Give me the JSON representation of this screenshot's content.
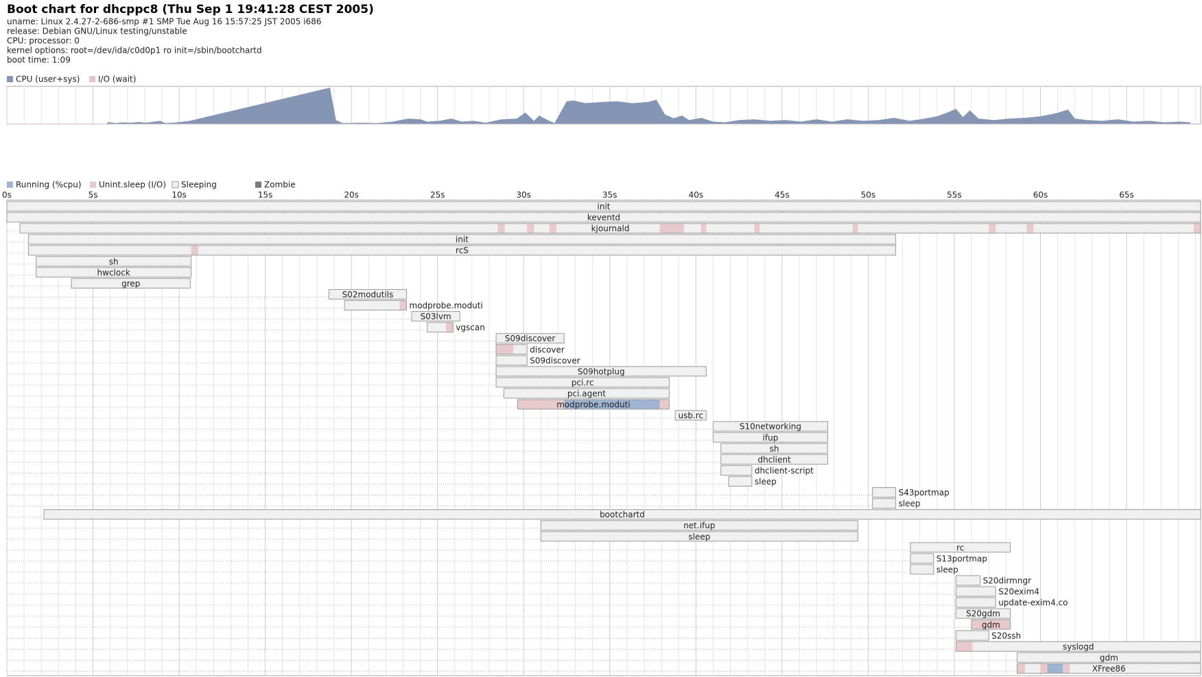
{
  "header": {
    "title": "Boot chart for dhcppc8 (Thu Sep  1 19:41:28 CEST 2005)",
    "info": [
      "uname: Linux 2.4.27-2-686-smp #1 SMP Tue Aug 16 15:57:25 JST 2005 i686",
      "release: Debian GNU/Linux testing/unstable",
      "CPU: processor: 0",
      "kernel options: root=/dev/ida/c0d0p1 ro init=/sbin/bootchartd",
      "boot time: 1:09"
    ]
  },
  "chart_data": [
    {
      "type": "area",
      "xlim": [
        0,
        69.3
      ],
      "ylim": [
        0,
        100
      ],
      "x": [
        0,
        5.77,
        5.9,
        6.3,
        6.75,
        7.2,
        7.65,
        8.1,
        8.55,
        8.9,
        9.2,
        9.9,
        10.6,
        10.8,
        18.75,
        19.1,
        19.5,
        20.6,
        21.5,
        22.4,
        23.3,
        24.0,
        24.4,
        25.1,
        25.8,
        26.4,
        27.1,
        27.8,
        28.7,
        29.6,
        30.1,
        30.6,
        30.9,
        31.4,
        31.8,
        32.5,
        32.9,
        33.6,
        34.5,
        35.4,
        36.3,
        37.2,
        37.7,
        38.2,
        38.7,
        39.2,
        39.6,
        40.3,
        41.0,
        41.7,
        42.5,
        43.4,
        44.3,
        45.2,
        46.1,
        47.0,
        47.9,
        48.8,
        49.7,
        50.6,
        51.5,
        52.4,
        53.3,
        54.0,
        54.6,
        55.1,
        55.5,
        55.9,
        56.4,
        57.3,
        58.2,
        59.1,
        60.0,
        60.9,
        61.6,
        62.0,
        62.7,
        63.6,
        64.5,
        65.4,
        66.3,
        67.2,
        68.1,
        68.7
      ],
      "series": [
        {
          "name": "CPU (user+sys)",
          "color": "#8596b4",
          "values": [
            0,
            0,
            5,
            2,
            4,
            3,
            5,
            3,
            6,
            8,
            2,
            4,
            8,
            10,
            96,
            10,
            2,
            3,
            2,
            6,
            14,
            12,
            6,
            8,
            14,
            6,
            8,
            3,
            12,
            14,
            30,
            8,
            22,
            10,
            2,
            60,
            62,
            55,
            58,
            60,
            55,
            58,
            64,
            25,
            15,
            22,
            10,
            16,
            6,
            4,
            10,
            12,
            8,
            10,
            6,
            12,
            6,
            12,
            8,
            10,
            16,
            8,
            14,
            20,
            30,
            40,
            18,
            36,
            14,
            10,
            14,
            16,
            20,
            28,
            38,
            14,
            10,
            8,
            12,
            6,
            8,
            4,
            6,
            4
          ]
        },
        {
          "name": "I/O (wait)",
          "color": "#e3c3c7",
          "values": [
            0,
            0,
            0,
            0,
            0,
            0,
            0,
            0,
            0,
            0,
            0,
            0,
            0,
            0,
            0,
            0,
            0,
            0,
            0,
            0,
            0,
            0,
            0,
            0,
            0,
            0,
            0,
            0,
            0,
            0,
            0,
            0,
            0,
            0,
            0,
            0,
            0,
            0,
            0,
            0,
            0,
            0,
            0,
            0,
            0,
            0,
            0,
            0,
            0,
            0,
            0,
            0,
            0,
            0,
            0,
            0,
            0,
            0,
            0,
            0,
            0,
            0,
            0,
            0,
            0,
            0,
            0,
            0,
            0,
            0,
            0,
            0,
            0,
            0,
            0,
            0,
            0,
            0,
            0,
            0,
            0,
            0,
            0,
            0
          ]
        }
      ]
    },
    {
      "type": "gantt",
      "xlim": [
        0,
        69.3
      ],
      "xticks": [
        {
          "value": 0,
          "label": "0s"
        },
        {
          "value": 5,
          "label": "5s"
        },
        {
          "value": 10,
          "label": "10s"
        },
        {
          "value": 15,
          "label": "15s"
        },
        {
          "value": 20,
          "label": "20s"
        },
        {
          "value": 25,
          "label": "25s"
        },
        {
          "value": 30,
          "label": "30s"
        },
        {
          "value": 35,
          "label": "35s"
        },
        {
          "value": 40,
          "label": "40s"
        },
        {
          "value": 45,
          "label": "45s"
        },
        {
          "value": 50,
          "label": "50s"
        },
        {
          "value": 55,
          "label": "55s"
        },
        {
          "value": 60,
          "label": "60s"
        },
        {
          "value": 65,
          "label": "65s"
        }
      ],
      "xminorticks": [
        1,
        2,
        3,
        4,
        6,
        7,
        8,
        9,
        11,
        12,
        13,
        14,
        16,
        17,
        18,
        19,
        21,
        22,
        23,
        24,
        26,
        27,
        28,
        29,
        31,
        32,
        33,
        34,
        36,
        37,
        38,
        39,
        41,
        42,
        43,
        44,
        46,
        47,
        48,
        49,
        51,
        52,
        53,
        54,
        56,
        57,
        58,
        59,
        61,
        62,
        63,
        64,
        66,
        67,
        68,
        69
      ],
      "states": [
        {
          "name": "Running (%cpu)",
          "color": "#9fb4d0"
        },
        {
          "name": "Unint.sleep (I/O)",
          "color": "#e8cacd"
        },
        {
          "name": "Sleeping",
          "color": "#f0f0f0"
        },
        {
          "name": "Zombie",
          "color": "#7a7a7a"
        }
      ],
      "processes": [
        {
          "name": "init",
          "start": 0,
          "end": 69.3
        },
        {
          "name": "keventd",
          "start": 0,
          "end": 69.3
        },
        {
          "name": "kjournald",
          "start": 0.76,
          "end": 69.3,
          "io": [
            [
              28.5,
              28.9
            ],
            [
              30.2,
              30.6
            ],
            [
              31.5,
              31.9
            ],
            [
              37.9,
              39.3
            ],
            [
              40.3,
              40.6
            ],
            [
              43.4,
              43.7
            ],
            [
              49.1,
              49.4
            ],
            [
              57.0,
              57.4
            ],
            [
              59.2,
              59.6
            ],
            [
              68.9,
              69.3
            ]
          ]
        },
        {
          "name": "init",
          "start": 1.25,
          "end": 51.6
        },
        {
          "name": "rcS",
          "start": 1.25,
          "end": 51.6,
          "io": [
            [
              10.7,
              11.1
            ]
          ]
        },
        {
          "name": "sh",
          "start": 1.7,
          "end": 10.7
        },
        {
          "name": "hwclock",
          "start": 1.7,
          "end": 10.7
        },
        {
          "name": "grep",
          "start": 3.75,
          "end": 10.65
        },
        {
          "name": "S02modutils",
          "start": 18.7,
          "end": 23.2
        },
        {
          "name": "modprobe.moduti",
          "start": 19.6,
          "end": 23.2,
          "io": [
            [
              22.8,
              23.2
            ]
          ]
        },
        {
          "name": "S03lvm",
          "start": 23.5,
          "end": 26.3
        },
        {
          "name": "vgscan",
          "start": 24.4,
          "end": 25.9,
          "io": [
            [
              25.5,
              25.9
            ]
          ]
        },
        {
          "name": "S09discover",
          "start": 28.4,
          "end": 32.35
        },
        {
          "name": "discover",
          "start": 28.4,
          "end": 30.2,
          "io": [
            [
              28.4,
              29.4
            ]
          ]
        },
        {
          "name": "S09discover",
          "start": 28.4,
          "end": 30.2
        },
        {
          "name": "S09hotplug",
          "start": 28.4,
          "end": 40.6
        },
        {
          "name": "pci.rc",
          "start": 28.4,
          "end": 38.45
        },
        {
          "name": "pci.agent",
          "start": 28.85,
          "end": 38.45
        },
        {
          "name": "modprobe.moduti",
          "start": 29.65,
          "end": 38.45,
          "io": [
            [
              29.65,
              32.35
            ],
            [
              37.9,
              38.45
            ]
          ],
          "running": [
            [
              32.35,
              37.9
            ]
          ]
        },
        {
          "name": "usb.rc",
          "start": 38.8,
          "end": 40.6
        },
        {
          "name": "S10networking",
          "start": 41,
          "end": 47.65
        },
        {
          "name": "ifup",
          "start": 41,
          "end": 47.65
        },
        {
          "name": "sh",
          "start": 41.45,
          "end": 47.65
        },
        {
          "name": "dhclient",
          "start": 41.45,
          "end": 47.65
        },
        {
          "name": "dhclient-script",
          "start": 41.45,
          "end": 43.25
        },
        {
          "name": "sleep",
          "start": 41.9,
          "end": 43.25
        },
        {
          "name": "S43portmap",
          "start": 50.25,
          "end": 51.6
        },
        {
          "name": "sleep",
          "start": 50.25,
          "end": 51.6
        },
        {
          "name": "bootchartd",
          "start": 2.15,
          "end": 69.3
        },
        {
          "name": "net.ifup",
          "start": 31,
          "end": 49.4
        },
        {
          "name": "sleep",
          "start": 31,
          "end": 49.4
        },
        {
          "name": "rc",
          "start": 52.45,
          "end": 58.25
        },
        {
          "name": "S13portmap",
          "start": 52.45,
          "end": 53.8
        },
        {
          "name": "sleep",
          "start": 52.45,
          "end": 53.8
        },
        {
          "name": "S20dirmngr",
          "start": 55.1,
          "end": 56.5
        },
        {
          "name": "S20exim4",
          "start": 55.1,
          "end": 57.4
        },
        {
          "name": "update-exim4.co",
          "start": 55.1,
          "end": 57.4
        },
        {
          "name": "S20gdm",
          "start": 55.1,
          "end": 58.25
        },
        {
          "name": "gdm",
          "start": 56,
          "end": 58.25,
          "io": [
            [
              56,
              58.25
            ]
          ]
        },
        {
          "name": "S20ssh",
          "start": 55.1,
          "end": 57
        },
        {
          "name": "syslogd",
          "start": 55.1,
          "end": 69.3,
          "io": [
            [
              55.1,
              56.05
            ]
          ]
        },
        {
          "name": "gdm",
          "start": 58.65,
          "end": 69.3
        },
        {
          "name": "XFree86",
          "start": 58.65,
          "end": 69.3,
          "io": [
            [
              58.65,
              59.1
            ],
            [
              60,
              60.4
            ],
            [
              61.3,
              61.7
            ]
          ],
          "running": [
            [
              60.4,
              61.3
            ]
          ]
        }
      ]
    }
  ]
}
